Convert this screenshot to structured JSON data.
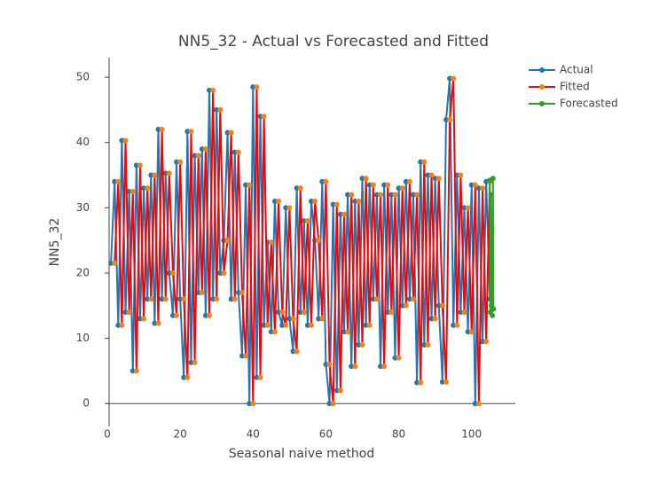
{
  "chart_data": {
    "type": "line",
    "title": "NN5_32 - Actual vs Forecasted and Fitted",
    "x_label": "Seasonal naive method",
    "y_label": "NN5_32",
    "xlim": [
      0,
      112
    ],
    "ylim": [
      -3.5,
      53
    ],
    "xticks": [
      0,
      20,
      40,
      60,
      80,
      100
    ],
    "yticks": [
      0,
      10,
      20,
      30,
      40,
      50
    ],
    "grid": false,
    "legend": "top-right",
    "series": [
      {
        "name": "Actual",
        "color": "#1f77b4",
        "marker_color": "#1f77b4",
        "x": [
          1,
          2,
          3,
          4,
          5,
          6,
          7,
          8,
          9,
          10,
          11,
          12,
          13,
          14,
          15,
          16,
          17,
          18,
          19,
          20,
          21,
          22,
          23,
          24,
          25,
          26,
          27,
          28,
          29,
          30,
          31,
          32,
          33,
          34,
          35,
          36,
          37,
          38,
          39,
          40,
          41,
          42,
          43,
          44,
          45,
          46,
          47,
          48,
          49,
          50,
          51,
          52,
          53,
          54,
          55,
          56,
          57,
          58,
          59,
          60,
          61,
          62,
          63,
          64,
          65,
          66,
          67,
          68,
          69,
          70,
          71,
          72,
          73,
          74,
          75,
          76,
          77,
          78,
          79,
          80,
          81,
          82,
          83,
          84,
          85,
          86,
          87,
          88,
          89,
          90,
          91,
          92,
          93,
          94,
          95,
          96,
          97,
          98,
          99,
          100,
          101,
          102,
          103,
          104,
          105
        ],
        "values": [
          21.5,
          34,
          12,
          40.3,
          14,
          32.5,
          5,
          36.5,
          13,
          33,
          16,
          35,
          12.3,
          42,
          16,
          35.3,
          20,
          13.5,
          37,
          16,
          4,
          41.7,
          6.3,
          38,
          17,
          39,
          13.5,
          48,
          16,
          45,
          20,
          25,
          41.5,
          16,
          38.5,
          17,
          7.3,
          33.5,
          0,
          48.5,
          4,
          44,
          12,
          24.7,
          11,
          31,
          14,
          12,
          30,
          13,
          8,
          33,
          14,
          28,
          12,
          31,
          25,
          13,
          34,
          6,
          0,
          30.5,
          2,
          29,
          11,
          32,
          5.7,
          31,
          9,
          34.5,
          12,
          33.5,
          16,
          32,
          5.7,
          33.5,
          14,
          32,
          7,
          33,
          15,
          34,
          16,
          32,
          3.2,
          37,
          9,
          35,
          13,
          34.5,
          15,
          3.3,
          43.5,
          49.8,
          12,
          35,
          14,
          30,
          11,
          33.5,
          0,
          33,
          9.5,
          34,
          16
        ]
      },
      {
        "name": "Fitted",
        "color": "#ff0000",
        "marker_color": "#ff7f0e",
        "x": [
          2,
          3,
          4,
          5,
          6,
          7,
          8,
          9,
          10,
          11,
          12,
          13,
          14,
          15,
          16,
          17,
          18,
          19,
          20,
          21,
          22,
          23,
          24,
          25,
          26,
          27,
          28,
          29,
          30,
          31,
          32,
          33,
          34,
          35,
          36,
          37,
          38,
          39,
          40,
          41,
          42,
          43,
          44,
          45,
          46,
          47,
          48,
          49,
          50,
          51,
          52,
          53,
          54,
          55,
          56,
          57,
          58,
          59,
          60,
          61,
          62,
          63,
          64,
          65,
          66,
          67,
          68,
          69,
          70,
          71,
          72,
          73,
          74,
          75,
          76,
          77,
          78,
          79,
          80,
          81,
          82,
          83,
          84,
          85,
          86,
          87,
          88,
          89,
          90,
          91,
          92,
          93,
          94,
          95,
          96,
          97,
          98,
          99,
          100,
          101,
          102,
          103,
          104,
          105
        ],
        "values": [
          21.5,
          34,
          12,
          40.3,
          14,
          32.5,
          5,
          36.5,
          13,
          33,
          16,
          35,
          12.3,
          42,
          16,
          35.3,
          20,
          13.5,
          37,
          16,
          4,
          41.7,
          6.3,
          38,
          17,
          39,
          13.5,
          48,
          16,
          45,
          20,
          25,
          41.5,
          16,
          38.5,
          17,
          7.3,
          33.5,
          0,
          48.5,
          4,
          44,
          12,
          24.7,
          11,
          31,
          14,
          12,
          30,
          13,
          8,
          33,
          14,
          28,
          12,
          31,
          25,
          13,
          34,
          6,
          0,
          30.5,
          2,
          29,
          11,
          32,
          5.7,
          31,
          9,
          34.5,
          12,
          33.5,
          16,
          32,
          5.7,
          33.5,
          14,
          32,
          7,
          33,
          15,
          34,
          16,
          32,
          3.2,
          37,
          9,
          35,
          13,
          34.5,
          15,
          3.3,
          43.5,
          49.8,
          12,
          35,
          14,
          30,
          11,
          33.5,
          0,
          33,
          9.5,
          34
        ]
      },
      {
        "name": "Forecasted",
        "color": "#2ca02c",
        "marker_color": "#2ca02c",
        "x": [
          105,
          105.14,
          105.29,
          105.43,
          105.57,
          105.71,
          105.86,
          106
        ],
        "values": [
          34.2,
          14,
          32,
          15,
          27,
          13.5,
          34.5,
          14.5
        ]
      }
    ]
  }
}
